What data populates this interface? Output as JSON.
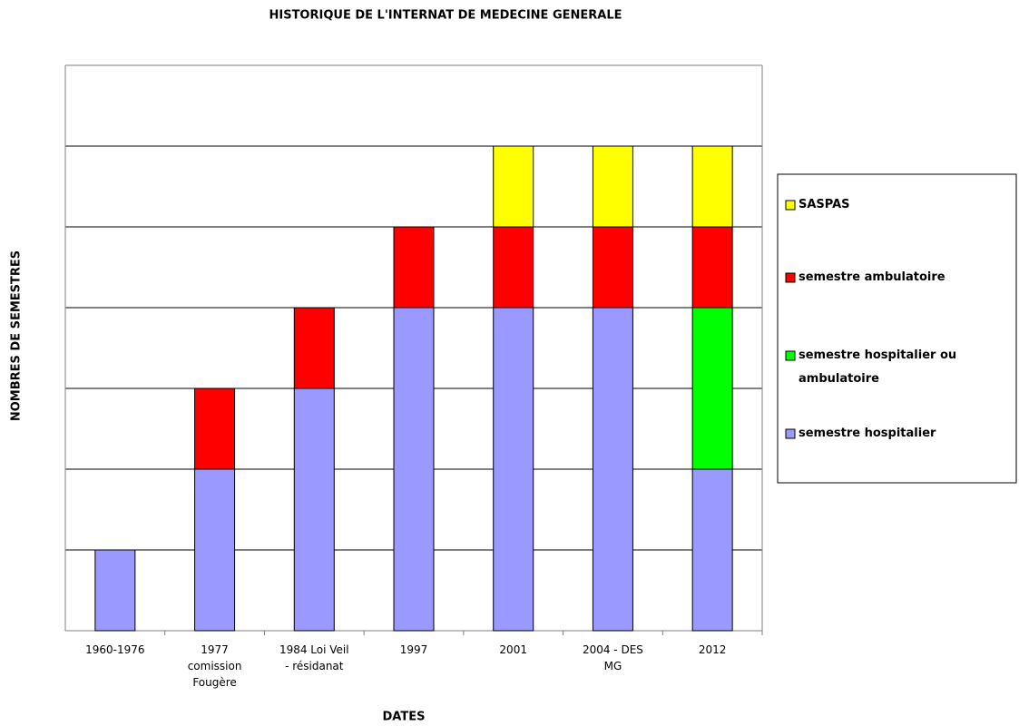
{
  "chart_data": {
    "type": "stacked_bar",
    "title": "HISTORIQUE DE L'INTERNAT DE MEDECINE GENERALE",
    "x_label": "DATES",
    "y_label": "NOMBRES DE SEMESTRES",
    "categories": [
      "1960-1976",
      "1977 comission Fougère",
      "1984 Loi Veil - résidanat",
      "1997",
      "2001",
      "2004 - DES MG",
      "2012"
    ],
    "series": [
      {
        "name": "semestre hospitalier",
        "color": "#9999ff",
        "values": [
          1,
          2,
          3,
          4,
          4,
          4,
          2
        ]
      },
      {
        "name": "semestre hospitalier ou ambulatoire",
        "color": "#00ff00",
        "values": [
          0,
          0,
          0,
          0,
          0,
          0,
          2
        ]
      },
      {
        "name": "semestre ambulatoire",
        "color": "#ff0000",
        "values": [
          0,
          1,
          1,
          1,
          1,
          1,
          1
        ]
      },
      {
        "name": "SASPAS",
        "color": "#ffff00",
        "values": [
          0,
          0,
          0,
          0,
          1,
          1,
          1
        ]
      }
    ],
    "ylim": [
      0,
      7
    ],
    "yticks": [
      1,
      2,
      3,
      4,
      5,
      6,
      7
    ],
    "grid": true,
    "legend": "right"
  }
}
